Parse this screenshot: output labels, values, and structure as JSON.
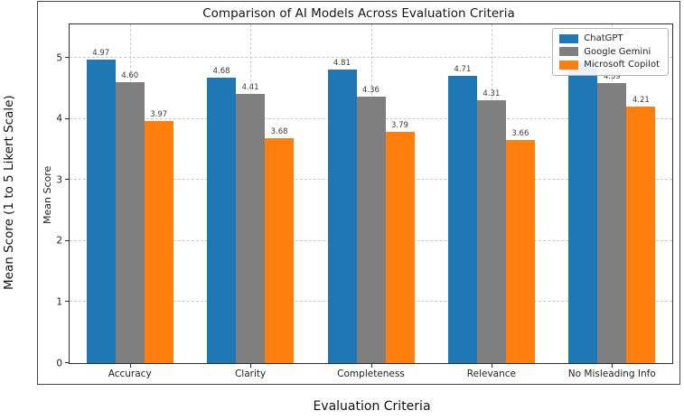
{
  "figure": {
    "title": "Comparison of AI Models Across Evaluation Criteria",
    "outer_ylabel": "Mean Score (1 to 5 Likert Scale)",
    "outer_xlabel": "Evaluation Criteria",
    "inner_ylabel": "Mean Score"
  },
  "chart_data": {
    "type": "bar",
    "title": "Comparison of AI Models Across Evaluation Criteria",
    "xlabel": "Evaluation Criteria",
    "ylabel": "Mean Score",
    "ylim": [
      0,
      5.55
    ],
    "yticks": [
      0,
      1,
      2,
      3,
      4,
      5
    ],
    "grid": true,
    "grid_style": "dashed",
    "legend_position": "upper right",
    "value_label_decimals": 2,
    "categories": [
      "Accuracy",
      "Clarity",
      "Completeness",
      "Relevance",
      "No Misleading Info"
    ],
    "series": [
      {
        "name": "ChatGPT",
        "color": "#1f77b4",
        "values": [
          4.97,
          4.68,
          4.81,
          4.71,
          4.92
        ]
      },
      {
        "name": "Google Gemini",
        "color": "#7f7f7f",
        "values": [
          4.6,
          4.41,
          4.36,
          4.31,
          4.59
        ]
      },
      {
        "name": "Microsoft Copilot",
        "color": "#ff7f0e",
        "values": [
          3.97,
          3.68,
          3.79,
          3.66,
          4.21
        ]
      }
    ]
  }
}
